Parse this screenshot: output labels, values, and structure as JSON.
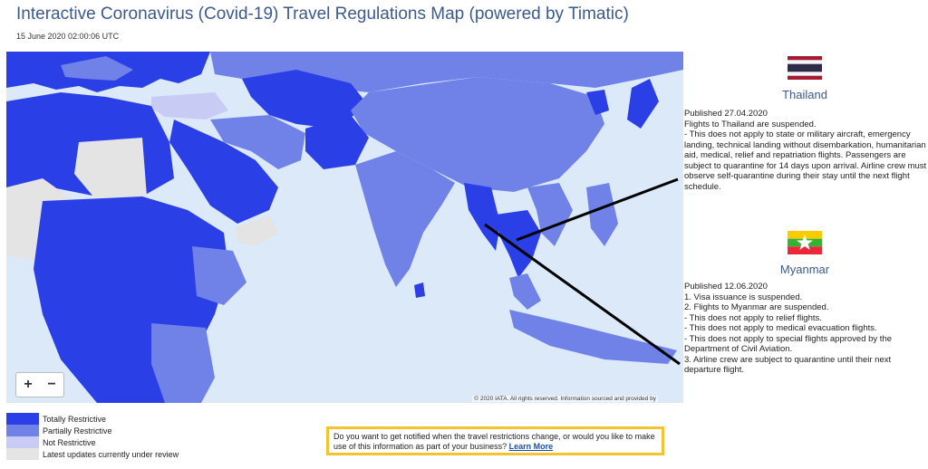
{
  "header": {
    "title": "Interactive Coronavirus (Covid-19) Travel Regulations Map (powered by Timatic)",
    "timestamp": "15 June 2020 02:00:06 UTC"
  },
  "map": {
    "zoom_in": "+",
    "zoom_out": "−",
    "attribution": "© 2020 IATA. All rights reserved. Information sourced and provided by",
    "colors": {
      "water": "#dbe9f8",
      "totally": "#2a3fe6",
      "partially": "#7082e8",
      "not": "#c8ccf5",
      "review": "#e4e4e4"
    }
  },
  "legend": [
    {
      "label": "Totally Restrictive",
      "color": "#2a3fe6"
    },
    {
      "label": "Partially Restrictive",
      "color": "#7082e8"
    },
    {
      "label": "Not Restrictive",
      "color": "#c8ccf5"
    },
    {
      "label": "Latest updates currently under review",
      "color": "#e4e4e4"
    }
  ],
  "notify": {
    "text": "Do you want to get notified when the travel restrictions change, or would you like to make use of this information as part of your business?",
    "link": "Learn More"
  },
  "callouts": [
    {
      "country": "Thailand",
      "flag": "thailand-flag-icon",
      "published": "Published 27.04.2020",
      "lines": [
        "Flights to Thailand are suspended.",
        "- This does not apply to state or military aircraft, emergency landing, technical landing without disembarkation, humanitarian aid, medical, relief and repatriation flights. Passengers are subject to quarantine for 14 days upon arrival. Airline crew must observe self-quarantine during their stay until the next flight schedule."
      ]
    },
    {
      "country": "Myanmar",
      "flag": "myanmar-flag-icon",
      "published": "Published 12.06.2020",
      "lines": [
        "1. Visa issuance is suspended.",
        "2. Flights to Myanmar are suspended.",
        "- This does not apply to relief flights.",
        "- This does not apply to medical evacuation flights.",
        "- This does not apply to special flights approved by the Department of Civil Aviation.",
        "3. Airline crew are subject to quarantine until their next departure flight."
      ]
    }
  ]
}
